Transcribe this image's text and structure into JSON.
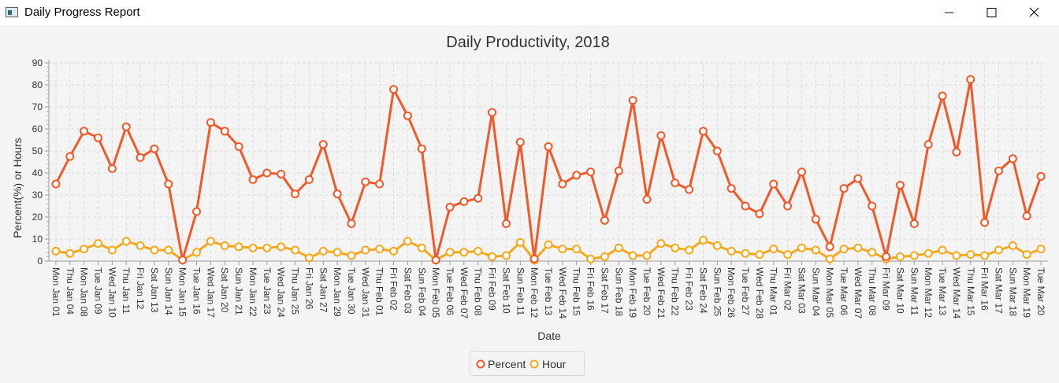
{
  "window": {
    "title": "Daily Progress Report",
    "icon": "app-window-icon",
    "controls": {
      "minimize": "minimize-icon",
      "maximize": "maximize-icon",
      "close": "close-icon"
    }
  },
  "chart_data": {
    "type": "line",
    "title": "Daily Productivity, 2018",
    "xlabel": "Date",
    "ylabel": "Percent(%) or Hours",
    "ylim": [
      0,
      90
    ],
    "yticks": [
      0,
      10,
      20,
      30,
      40,
      50,
      60,
      70,
      80,
      90
    ],
    "grid": true,
    "legend_position": "bottom-center",
    "categories": [
      "Mon Jan 01",
      "Thu Jan 04",
      "Mon Jan 08",
      "Tue Jan 09",
      "Wed Jan 10",
      "Thu Jan 11",
      "Fri Jan 12",
      "Sat Jan 13",
      "Sun Jan 14",
      "Mon Jan 15",
      "Tue Jan 16",
      "Wed Jan 17",
      "Sat Jan 20",
      "Sun Jan 21",
      "Mon Jan 22",
      "Tue Jan 23",
      "Wed Jan 24",
      "Thu Jan 25",
      "Fri Jan 26",
      "Sat Jan 27",
      "Mon Jan 29",
      "Tue Jan 30",
      "Wed Jan 31",
      "Thu Feb 01",
      "Fri Feb 02",
      "Sat Feb 03",
      "Sun Feb 04",
      "Mon Feb 05",
      "Tue Feb 06",
      "Wed Feb 07",
      "Thu Feb 08",
      "Fri Feb 09",
      "Sat Feb 10",
      "Sun Feb 11",
      "Mon Feb 12",
      "Tue Feb 13",
      "Wed Feb 14",
      "Thu Feb 15",
      "Fri Feb 16",
      "Sat Feb 17",
      "Sun Feb 18",
      "Mon Feb 19",
      "Tue Feb 20",
      "Wed Feb 21",
      "Thu Feb 22",
      "Fri Feb 23",
      "Sat Feb 24",
      "Sun Feb 25",
      "Mon Feb 26",
      "Tue Feb 27",
      "Wed Feb 28",
      "Thu Mar 01",
      "Fri Mar 02",
      "Sat Mar 03",
      "Sun Mar 04",
      "Mon Mar 05",
      "Tue Mar 06",
      "Wed Mar 07",
      "Thu Mar 08",
      "Fri Mar 09",
      "Sat Mar 10",
      "Sun Mar 11",
      "Mon Mar 12",
      "Tue Mar 13",
      "Wed Mar 14",
      "Thu Mar 15",
      "Fri Mar 16",
      "Sat Mar 17",
      "Sun Mar 18",
      "Mon Mar 19",
      "Tue Mar 20"
    ],
    "series": [
      {
        "name": "Percent",
        "color": "#f0592a",
        "values": [
          35,
          47.5,
          59,
          56,
          42,
          61,
          47,
          51,
          35,
          0.5,
          22.5,
          63,
          59,
          52,
          37,
          40,
          39.5,
          30.5,
          37,
          53,
          30.5,
          17,
          36,
          35,
          78,
          66,
          51,
          0.5,
          24.5,
          27,
          28.5,
          67.5,
          17,
          54,
          1,
          52,
          35,
          39,
          40.5,
          18.5,
          41,
          73,
          28,
          57,
          35.5,
          32.5,
          59,
          50,
          33,
          25,
          21.5,
          35,
          25,
          40.5,
          19,
          6.5,
          33,
          37.5,
          25,
          2,
          34.5,
          17,
          53,
          75,
          49.5,
          82.5,
          17.5,
          41,
          46.5,
          20.5,
          38.5
        ]
      },
      {
        "name": "Hour",
        "color": "#f6a81c",
        "values": [
          4.5,
          3.5,
          5.5,
          8,
          5,
          9,
          7,
          5,
          5,
          0.5,
          4,
          9,
          7,
          6.5,
          6,
          6,
          6.5,
          5,
          1.5,
          4.5,
          4,
          2.5,
          5,
          5.5,
          4.5,
          9,
          6,
          0.5,
          4,
          4,
          4.5,
          2,
          2.5,
          8.5,
          0.5,
          7.5,
          5.5,
          5.5,
          1,
          2,
          6,
          2.5,
          2.5,
          8,
          6,
          5,
          9.5,
          7,
          4.5,
          3.5,
          3,
          5.5,
          3,
          6,
          5,
          1,
          5.5,
          6,
          4,
          1,
          2,
          2.5,
          3.5,
          5,
          2.5,
          3,
          2.5,
          5,
          7,
          3,
          5.5
        ]
      }
    ]
  }
}
